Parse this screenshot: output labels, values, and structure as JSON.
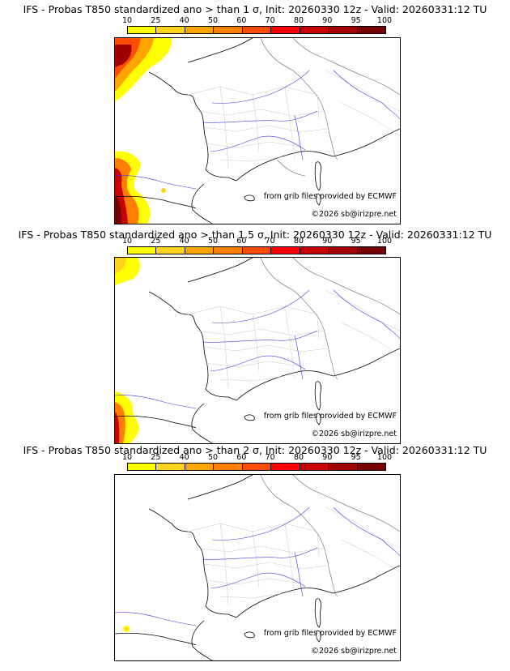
{
  "colorbar": {
    "ticks": [
      "10",
      "25",
      "40",
      "50",
      "60",
      "70",
      "80",
      "90",
      "95",
      "100"
    ],
    "colors": [
      "#ffff00",
      "#ffd21e",
      "#ffa500",
      "#ff7f00",
      "#ff4c00",
      "#ff0000",
      "#c80000",
      "#a00000",
      "#780000"
    ]
  },
  "credits": {
    "source": "from grib files provided by ECMWF",
    "copyright": "©2026 sb@irizpre.net"
  },
  "panels": [
    {
      "title": "IFS - Probas T850  standardized ano > than 1 σ, Init: 20260330 12z - Valid: 20260331:12 TU"
    },
    {
      "title": "IFS - Probas T850  standardized ano > than 1.5 σ, Init: 20260330 12z - Valid: 20260331:12 TU"
    },
    {
      "title": "IFS - Probas T850  standardized ano > than 2 σ, Init: 20260330 12z - Valid: 20260331:12 TU"
    }
  ]
}
